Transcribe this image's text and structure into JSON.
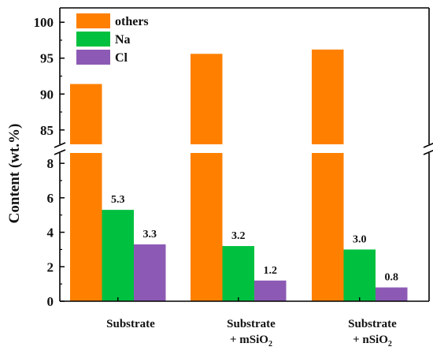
{
  "chart_data": {
    "type": "bar",
    "ylabel": "Content (wt.%)",
    "y_axis_break": {
      "lower_range": [
        0,
        8.6
      ],
      "upper_range": [
        83,
        102
      ]
    },
    "y_ticks_lower": [
      "0",
      "2",
      "4",
      "6",
      "8"
    ],
    "y_ticks_upper": [
      "85",
      "90",
      "95",
      "100"
    ],
    "categories": [
      {
        "line1": "Substrate",
        "line2_prefix": "",
        "line2_sub": ""
      },
      {
        "line1": "Substrate",
        "line2_prefix": "+ mSiO",
        "line2_sub": "2"
      },
      {
        "line1": "Substrate",
        "line2_prefix": "+ nSiO",
        "line2_sub": "2"
      }
    ],
    "series": [
      {
        "name": "others",
        "color": "#ff8000",
        "values": [
          91.4,
          95.6,
          96.2
        ],
        "labels": [
          "",
          "",
          ""
        ]
      },
      {
        "name": "Na",
        "color": "#00c040",
        "values": [
          5.3,
          3.2,
          3.0
        ],
        "labels": [
          "5.3",
          "3.2",
          "3.0"
        ]
      },
      {
        "name": "Cl",
        "color": "#8c5ab4",
        "values": [
          3.3,
          1.2,
          0.8
        ],
        "labels": [
          "3.3",
          "1.2",
          "0.8"
        ]
      }
    ],
    "legend_position": "top-left"
  }
}
